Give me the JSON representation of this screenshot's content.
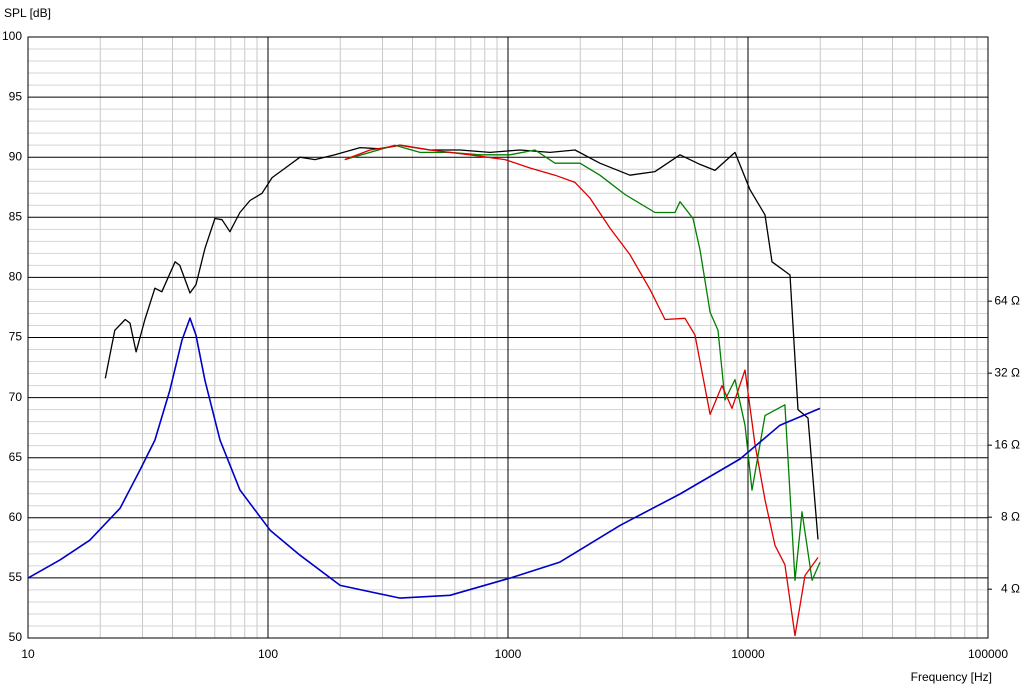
{
  "chart_data": {
    "type": "line",
    "ylabel": "SPL [dB]",
    "xlabel": "Frequency [Hz]",
    "xlim": [
      10,
      100000
    ],
    "xscale": "log",
    "xticks": [
      10,
      100,
      1000,
      10000,
      100000
    ],
    "ylim": [
      50,
      100
    ],
    "yticks": [
      50,
      55,
      60,
      65,
      70,
      75,
      80,
      85,
      90,
      95,
      100
    ],
    "y2lim": [
      2.5,
      814
    ],
    "y2scale": "log",
    "y2ticks": [
      {
        "value": 4,
        "label": "4 Ω"
      },
      {
        "value": 8,
        "label": "8 Ω"
      },
      {
        "value": 16,
        "label": "16 Ω"
      },
      {
        "value": 32,
        "label": "32 Ω"
      },
      {
        "value": 64,
        "label": "64 Ω"
      }
    ],
    "grid": true,
    "series": [
      {
        "color": "#000000",
        "x": [
          21,
          23,
          25.4,
          26.6,
          28.2,
          30.7,
          33.8,
          36.1,
          41,
          42.9,
          47.3,
          50.1,
          54.6,
          60.1,
          64.3,
          69.4,
          76.4,
          84.1,
          94.4,
          104,
          118,
          136,
          157,
          190,
          242,
          293,
          355,
          473,
          631,
          841,
          1122,
          1496,
          1901,
          2415,
          3221,
          4099,
          5209,
          6310,
          7289,
          8826,
          10190,
          11770,
          12590,
          14960,
          16150,
          17780,
          19570
        ],
        "values": [
          71.6,
          75.6,
          76.5,
          76.2,
          73.8,
          76.5,
          79.1,
          78.8,
          81.3,
          81,
          78.7,
          79.4,
          82.4,
          84.9,
          84.8,
          83.8,
          85.4,
          86.4,
          87,
          88.3,
          89.1,
          90,
          89.8,
          90.2,
          90.8,
          90.7,
          91,
          90.6,
          90.6,
          90.4,
          90.6,
          90.4,
          90.6,
          89.5,
          88.5,
          88.8,
          90.2,
          89.4,
          88.9,
          90.4,
          87.3,
          85.2,
          81.3,
          80.2,
          69,
          68.3,
          58.2
        ]
      },
      {
        "color": "#008000",
        "x": [
          209,
          266,
          338,
          430,
          573,
          764,
          1019,
          1296,
          1570,
          1995,
          2415,
          3073,
          4099,
          4966,
          5209,
          5902,
          6310,
          6950,
          7499,
          8017,
          8826,
          9716,
          10390,
          11770,
          14250,
          15700,
          16790,
          18490,
          19950
        ],
        "values": [
          89.8,
          90.4,
          91,
          90.4,
          90.4,
          90.2,
          90.2,
          90.6,
          89.5,
          89.5,
          88.5,
          86.9,
          85.4,
          85.4,
          86.3,
          84.9,
          82.3,
          77.1,
          75.6,
          69.8,
          71.5,
          67.7,
          62.3,
          68.5,
          69.4,
          54.8,
          60.5,
          54.8,
          56.3
        ]
      },
      {
        "color": "#e00000",
        "x": [
          209,
          266,
          355,
          473,
          694,
          972,
          1235,
          1570,
          1901,
          2197,
          2661,
          3221,
          3905,
          4509,
          5463,
          6013,
          6950,
          7794,
          8577,
          9716,
          10690,
          11770,
          12960,
          14250,
          15700,
          17280,
          19570
        ],
        "values": [
          89.8,
          90.6,
          91,
          90.6,
          90.2,
          89.8,
          89.1,
          88.5,
          87.9,
          86.6,
          84.1,
          81.9,
          79,
          76.5,
          76.6,
          75.2,
          68.6,
          71,
          69.1,
          72.3,
          66.1,
          61.5,
          57.7,
          56.1,
          50.2,
          55.2,
          56.7
        ]
      },
      {
        "color": "#0000c8",
        "axis": "y2",
        "x": [
          10,
          13.6,
          18.1,
          24.2,
          29.3,
          33.8,
          39,
          43.8,
          47.3,
          50.1,
          54.6,
          63.1,
          76.4,
          102,
          136,
          200,
          355,
          573,
          1019,
          1646,
          2929,
          5209,
          9260,
          13590,
          19950
        ],
        "values": [
          4.45,
          5.3,
          6.41,
          8.72,
          12.6,
          16.8,
          27.2,
          44,
          54.4,
          46.1,
          29.9,
          16.8,
          10.4,
          7.06,
          5.55,
          4.15,
          3.67,
          3.77,
          4.45,
          5.19,
          7.39,
          10,
          14,
          19.4,
          22.8
        ]
      }
    ]
  }
}
